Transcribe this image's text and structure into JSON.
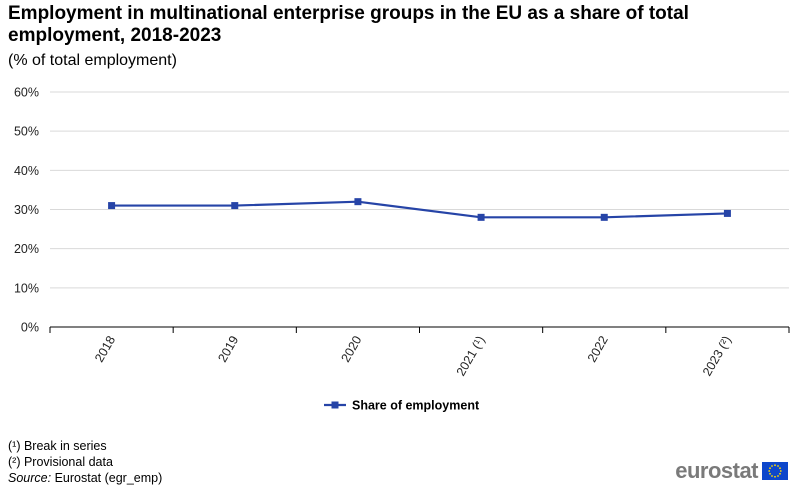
{
  "title": "Employment in multinational enterprise groups in the EU as a share of total employment, 2018-2023",
  "subtitle": "(% of total employment)",
  "notes": [
    "(¹) Break in series",
    "(²) Provisional data"
  ],
  "source": {
    "label": "Source:",
    "text": "Eurostat (egr_emp)"
  },
  "logo": {
    "text": "eurostat"
  },
  "colors": {
    "series": "#2644A7",
    "grid": "#d9d9d9",
    "axis": "#000000"
  },
  "chart_data": {
    "type": "line",
    "categories": [
      "2018",
      "2019",
      "2020",
      "2021 (¹)",
      "2022",
      "2023 (²)"
    ],
    "series": [
      {
        "name": "Share of employment",
        "values": [
          31,
          31,
          32,
          28,
          28,
          29
        ]
      }
    ],
    "yticks": [
      "0%",
      "10%",
      "20%",
      "30%",
      "40%",
      "50%",
      "60%"
    ],
    "ylim": [
      0,
      60
    ],
    "ylabel": "",
    "xlabel": "",
    "grid": true,
    "legend": "bottom-center",
    "marker": "square"
  }
}
